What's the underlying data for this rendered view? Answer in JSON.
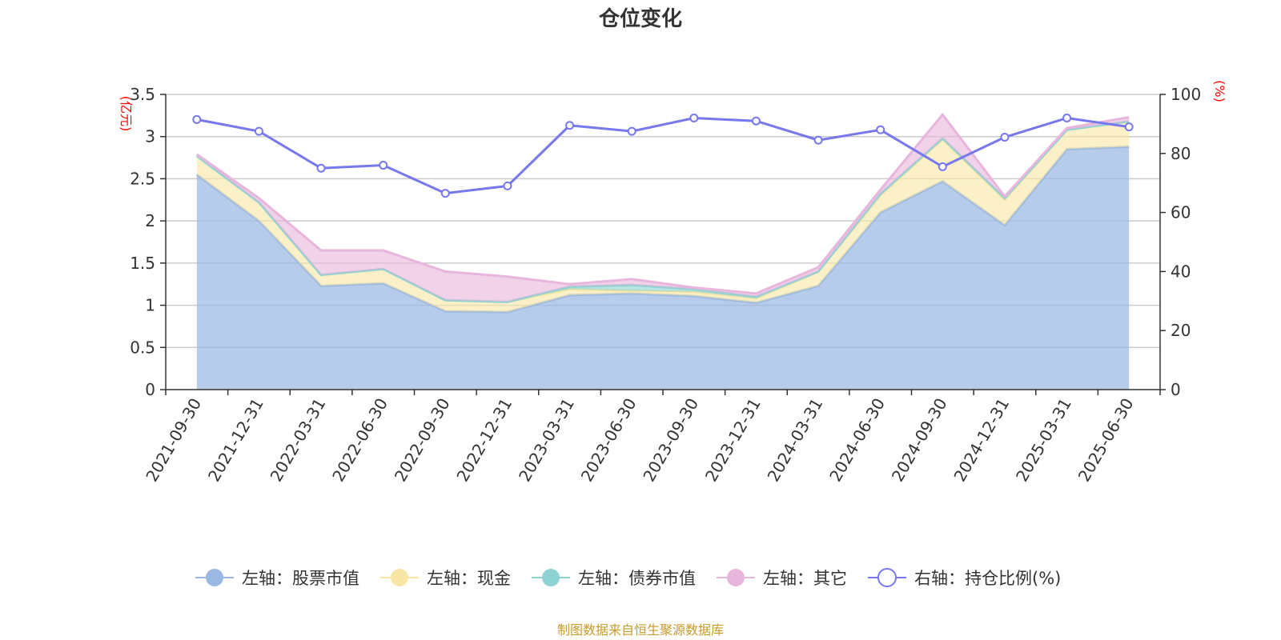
{
  "colors": {
    "stock": "#9ab8e2",
    "cash": "#f9e6a4",
    "bond": "#8dd3d4",
    "other": "#e8b6dc",
    "ratio": "#7777ee",
    "unit": "#ff0000",
    "source": "#c89b2a"
  },
  "chart_data": {
    "type": "area",
    "title": "仓位变化",
    "left_unit": "(亿元)",
    "right_unit": "(%)",
    "categories": [
      "2021-09-30",
      "2021-12-31",
      "2022-03-31",
      "2022-06-30",
      "2022-09-30",
      "2022-12-31",
      "2023-03-31",
      "2023-06-30",
      "2023-09-30",
      "2023-12-31",
      "2024-03-31",
      "2024-06-30",
      "2024-09-30",
      "2024-12-31",
      "2025-03-31",
      "2025-06-30"
    ],
    "left_axis": {
      "range": [
        0,
        3.5
      ],
      "ticks": [
        "0",
        "0.5",
        "1",
        "1.5",
        "2",
        "2.5",
        "3",
        "3.5"
      ]
    },
    "right_axis": {
      "range": [
        0,
        100
      ],
      "ticks": [
        "0",
        "20",
        "40",
        "60",
        "80",
        "100"
      ]
    },
    "stacked": true,
    "series": [
      {
        "name": "左轴：股票市值",
        "axis": "left",
        "color_key": "stock",
        "values": [
          2.55,
          2.0,
          1.23,
          1.26,
          0.93,
          0.92,
          1.12,
          1.14,
          1.11,
          1.03,
          1.23,
          2.1,
          2.47,
          1.95,
          2.85,
          2.88
        ]
      },
      {
        "name": "左轴：现金",
        "axis": "left",
        "color_key": "cash",
        "values": [
          0.22,
          0.22,
          0.13,
          0.17,
          0.13,
          0.12,
          0.07,
          0.03,
          0.05,
          0.05,
          0.17,
          0.2,
          0.5,
          0.3,
          0.23,
          0.3
        ]
      },
      {
        "name": "左轴：债券市值",
        "axis": "left",
        "color_key": "bond",
        "values": [
          0,
          0,
          0,
          0,
          0,
          0,
          0.03,
          0.07,
          0.03,
          0.02,
          0,
          0.02,
          0.01,
          0.02,
          0,
          0
        ]
      },
      {
        "name": "左轴：其它",
        "axis": "left",
        "color_key": "other",
        "values": [
          0.02,
          0.05,
          0.29,
          0.22,
          0.34,
          0.3,
          0.03,
          0.07,
          0.02,
          0.04,
          0.05,
          0.05,
          0.28,
          0.02,
          0.02,
          0.05
        ]
      },
      {
        "name": "右轴：持仓比例(%)",
        "axis": "right",
        "color_key": "ratio",
        "type": "line",
        "values": [
          91.5,
          87.5,
          75,
          76,
          66.5,
          69,
          89.5,
          87.5,
          92,
          91,
          84.5,
          88,
          75.5,
          85.5,
          92,
          89
        ]
      }
    ],
    "legend_placement": "bottom-center",
    "grid": true
  },
  "source_text": "制图数据来自恒生聚源数据库"
}
